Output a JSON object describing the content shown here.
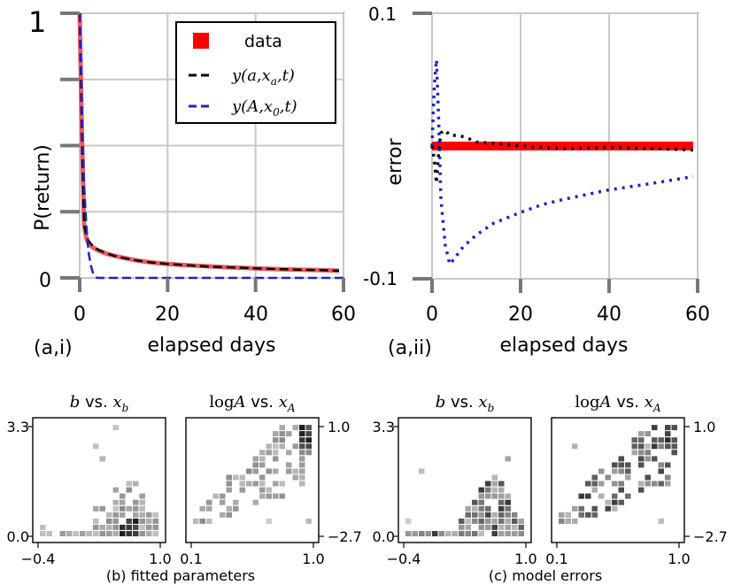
{
  "chart_data": [
    {
      "id": "a_i",
      "type": "line",
      "panel_label": "(a,i)",
      "xlabel": "elapsed days",
      "ylabel": "P(return)",
      "xlim": [
        0,
        60
      ],
      "ylim": [
        0,
        1
      ],
      "xticks": [
        0,
        20,
        40,
        60
      ],
      "xtick_labels": [
        "0",
        "20",
        "40",
        "60"
      ],
      "yticks": [
        0,
        0.25,
        0.5,
        0.75,
        1
      ],
      "ytick_labels": [
        "0",
        "",
        "",
        "",
        "1"
      ],
      "grid": true,
      "legend_position": "top-right",
      "series": [
        {
          "name": "data",
          "legend_label": "data",
          "style": "thick-solid",
          "color": "#f05a5a",
          "x": [
            0,
            0.5,
            1,
            1.5,
            2,
            3,
            4,
            6,
            8,
            10,
            13,
            16,
            20,
            25,
            30,
            35,
            40,
            45,
            50,
            55,
            59
          ],
          "y": [
            1,
            0.55,
            0.2,
            0.15,
            0.13,
            0.115,
            0.105,
            0.092,
            0.083,
            0.076,
            0.066,
            0.059,
            0.053,
            0.047,
            0.043,
            0.039,
            0.036,
            0.033,
            0.031,
            0.029,
            0.027
          ]
        },
        {
          "name": "y(a,xa,t)",
          "legend_label": "y(a,x_a,t)",
          "style": "dashed",
          "color": "#000000",
          "x": [
            0,
            0.5,
            1,
            1.5,
            2,
            3,
            4,
            6,
            8,
            10,
            13,
            16,
            20,
            25,
            30,
            35,
            40,
            45,
            50,
            55,
            59
          ],
          "y": [
            1,
            0.55,
            0.2,
            0.16,
            0.14,
            0.12,
            0.108,
            0.093,
            0.083,
            0.075,
            0.066,
            0.059,
            0.053,
            0.047,
            0.042,
            0.039,
            0.036,
            0.033,
            0.031,
            0.029,
            0.027
          ]
        },
        {
          "name": "y(A,x0,t)",
          "legend_label": "y(A,x_0,t)",
          "style": "dashed",
          "color": "#2020c8",
          "x": [
            0,
            0.3,
            0.6,
            1,
            1.5,
            2,
            2.5,
            3,
            3.5,
            4,
            60
          ],
          "y": [
            1,
            0.8,
            0.55,
            0.35,
            0.2,
            0.1,
            0.05,
            0.02,
            0.005,
            0.0,
            0.0
          ]
        }
      ]
    },
    {
      "id": "a_ii",
      "type": "line",
      "panel_label": "(a,ii)",
      "xlabel": "elapsed days",
      "ylabel": "error",
      "xlim": [
        0,
        60
      ],
      "ylim": [
        -0.1,
        0.1
      ],
      "xticks": [
        0,
        20,
        40,
        60
      ],
      "xtick_labels": [
        "0",
        "20",
        "40",
        "60"
      ],
      "yticks": [
        -0.1,
        0.1
      ],
      "ytick_labels": [
        "-0.1",
        "0.1"
      ],
      "grid": true,
      "series": [
        {
          "name": "data",
          "style": "thick-solid",
          "color": "#ff0000",
          "x": [
            0,
            59
          ],
          "y": [
            0,
            0
          ]
        },
        {
          "name": "y(a,xa,t)",
          "style": "dotted",
          "color": "#000000",
          "x": [
            0,
            0.5,
            1,
            1.5,
            2,
            3,
            4,
            6,
            8,
            10,
            14,
            20,
            30,
            40,
            50,
            59
          ],
          "y": [
            0,
            -0.01,
            -0.028,
            -0.005,
            0.01,
            0.012,
            0.008,
            0.008,
            0.006,
            0.003,
            0.002,
            0.0,
            -0.002,
            -0.001,
            -0.002,
            -0.003
          ]
        },
        {
          "name": "y(A,x0,t)",
          "style": "dotted",
          "color": "#2020c8",
          "x": [
            0,
            0.5,
            1,
            1.5,
            2,
            3,
            4,
            5,
            7,
            10,
            14,
            20,
            25,
            30,
            40,
            50,
            59
          ],
          "y": [
            0,
            0.045,
            0.065,
            0.02,
            -0.04,
            -0.075,
            -0.089,
            -0.085,
            -0.076,
            -0.067,
            -0.058,
            -0.05,
            -0.044,
            -0.04,
            -0.033,
            -0.028,
            -0.023
          ]
        }
      ]
    },
    {
      "id": "b_left",
      "type": "heatmap",
      "title_math": "b",
      "title_text": " vs. ",
      "title_math2": "x",
      "title_sub": "b",
      "xlim": [
        -0.4,
        1.0
      ],
      "ylim": [
        0,
        3.3
      ],
      "xtick_labels": [
        "−0.4",
        "1.0"
      ],
      "ytick_labels": [
        "0.0",
        "3.3"
      ],
      "ytick_side": "left"
    },
    {
      "id": "b_right",
      "type": "heatmap",
      "title_math": "log",
      "title_math_it": "A",
      "title_text": " vs. ",
      "title_math2": "x",
      "title_sub": "A",
      "xlim": [
        0.1,
        1.0
      ],
      "ylim": [
        -2.7,
        1.0
      ],
      "xtick_labels": [
        "0.1",
        "1.0"
      ],
      "ytick_labels": [
        "−2.7",
        "1.0"
      ],
      "ytick_side": "right"
    },
    {
      "id": "c_left",
      "type": "heatmap",
      "title_math": "b",
      "title_text": " vs. ",
      "title_math2": "x",
      "title_sub": "b",
      "xlim": [
        -0.4,
        1.0
      ],
      "ylim": [
        0,
        3.3
      ],
      "xtick_labels": [
        "−0.4",
        "1.0"
      ],
      "ytick_labels": [
        "0.0",
        "3.3"
      ],
      "ytick_side": "left"
    },
    {
      "id": "c_right",
      "type": "heatmap",
      "title_math": "log",
      "title_math_it": "A",
      "title_text": " vs. ",
      "title_math2": "x",
      "title_sub": "A",
      "xlim": [
        0.1,
        1.0
      ],
      "ylim": [
        -2.7,
        1.0
      ],
      "xtick_labels": [
        "0.1",
        "1.0"
      ],
      "ytick_labels": [
        "−2.7",
        "1.0"
      ],
      "ytick_side": "right"
    }
  ],
  "captions": {
    "b": "(b) fitted parameters",
    "c": "(c) model errors"
  },
  "colors": {
    "data_line": "#f05a5a",
    "data_error": "#ff0000",
    "model_blue": "#2020c8",
    "grid": "#c8c8c8",
    "tick": "#777777"
  }
}
